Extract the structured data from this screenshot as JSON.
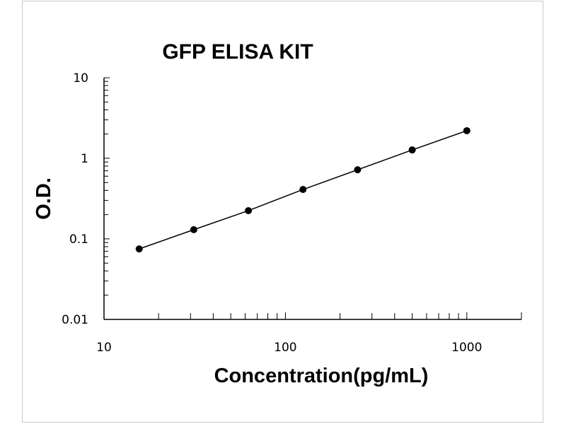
{
  "chart_data": {
    "type": "line",
    "title": "GFP ELISA KIT",
    "xlabel": "Concentration(pg/mL)",
    "ylabel": "O.D.",
    "x_scale": "log",
    "y_scale": "log",
    "xlim": [
      10,
      2000
    ],
    "ylim": [
      0.01,
      10
    ],
    "x_ticks": [
      "10",
      "100",
      "1000"
    ],
    "y_ticks": [
      "0.01",
      "0.1",
      "1",
      "10"
    ],
    "grid": false,
    "legend": "none",
    "series": [
      {
        "x": [
          15.625,
          31.25,
          62.5,
          125,
          250,
          500,
          1000
        ],
        "y": [
          0.075,
          0.13,
          0.224,
          0.41,
          0.72,
          1.27,
          2.2
        ],
        "marker": "circle",
        "color": "#000000"
      }
    ]
  }
}
